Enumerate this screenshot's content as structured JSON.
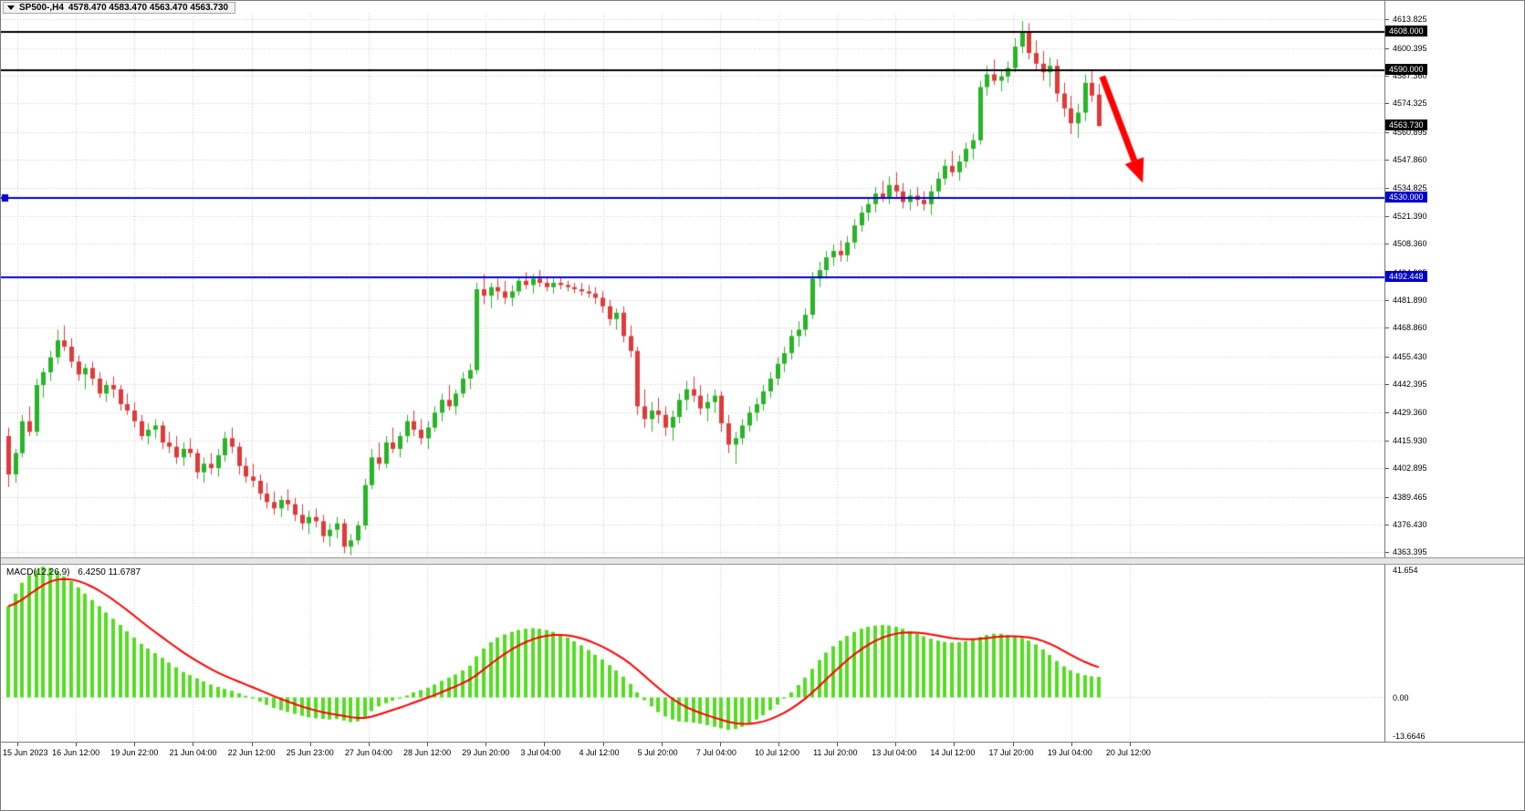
{
  "window": {
    "title": {
      "symbol": "SP500-,H4",
      "ohlc": "4578.470 4583.470 4563.470 4563.730"
    }
  },
  "colors": {
    "background": "#ffffff",
    "grid": "#c9c9c9",
    "up_candle": "#28b428",
    "down_candle": "#df3a3a",
    "hline_black": "#000000",
    "hline_blue": "#0000d0",
    "tag_black": "#000000",
    "tag_blue": "#0000c8",
    "macd_histogram": "#55dd22",
    "macd_signal": "#ff0000",
    "arrow": "#ff0000"
  },
  "chart_data": {
    "type": "candlestick",
    "symbol": "SP500-",
    "timeframe": "H4",
    "x_labels": [
      "15 Jun 2023",
      "16 Jun 12:00",
      "19 Jun 22:00",
      "21 Jun 04:00",
      "22 Jun 12:00",
      "25 Jun 23:00",
      "27 Jun 04:00",
      "28 Jun 12:00",
      "29 Jun 20:00",
      "3 Jul 04:00",
      "4 Jul 12:00",
      "5 Jul 20:00",
      "7 Jul 04:00",
      "10 Jul 12:00",
      "11 Jul 20:00",
      "13 Jul 04:00",
      "14 Jul 12:00",
      "17 Jul 20:00",
      "19 Jul 04:00",
      "20 Jul 12:00"
    ],
    "price_axis": {
      "min": 4361.0,
      "max": 4616.5,
      "labels": [
        "4613.825",
        "4600.395",
        "4587.360",
        "4574.325",
        "4560.895",
        "4547.860",
        "4534.825",
        "4521.390",
        "4508.360",
        "4494.925",
        "4481.890",
        "4468.860",
        "4455.430",
        "4442.395",
        "4429.360",
        "4415.930",
        "4402.895",
        "4389.465",
        "4376.430",
        "4363.395"
      ]
    },
    "hlines": [
      {
        "price": 4608.0,
        "label": "4608.000",
        "color": "black"
      },
      {
        "price": 4590.0,
        "label": "4590.000",
        "color": "black"
      },
      {
        "price": 4530.0,
        "label": "4530.000",
        "color": "blue",
        "handle": true
      },
      {
        "price": 4492.448,
        "label": "4492.448",
        "color": "blue"
      }
    ],
    "current_price": {
      "label": "4563.730",
      "price": 4563.73
    },
    "annotation_arrow": {
      "type": "arrow-down-right",
      "from": {
        "bar": 156.5,
        "price": 4587
      },
      "to": {
        "bar": 162.3,
        "price": 4537
      }
    },
    "candles_ohlc": [
      [
        4418,
        4422,
        4394,
        4400
      ],
      [
        4400,
        4412,
        4396,
        4410
      ],
      [
        4410,
        4428,
        4408,
        4425
      ],
      [
        4425,
        4432,
        4418,
        4420
      ],
      [
        4420,
        4445,
        4418,
        4442
      ],
      [
        4442,
        4450,
        4436,
        4448
      ],
      [
        4448,
        4458,
        4444,
        4455
      ],
      [
        4455,
        4468,
        4452,
        4463
      ],
      [
        4463,
        4470,
        4458,
        4460
      ],
      [
        4460,
        4464,
        4450,
        4453
      ],
      [
        4453,
        4456,
        4444,
        4447
      ],
      [
        4447,
        4452,
        4440,
        4450
      ],
      [
        4450,
        4453,
        4442,
        4445
      ],
      [
        4445,
        4448,
        4436,
        4438
      ],
      [
        4438,
        4444,
        4434,
        4442
      ],
      [
        4442,
        4446,
        4436,
        4440
      ],
      [
        4440,
        4442,
        4430,
        4433
      ],
      [
        4433,
        4438,
        4428,
        4430
      ],
      [
        4430,
        4434,
        4422,
        4425
      ],
      [
        4425,
        4428,
        4416,
        4418
      ],
      [
        4418,
        4424,
        4414,
        4421
      ],
      [
        4421,
        4426,
        4417,
        4423
      ],
      [
        4423,
        4425,
        4412,
        4415
      ],
      [
        4415,
        4420,
        4410,
        4413
      ],
      [
        4413,
        4418,
        4405,
        4408
      ],
      [
        4408,
        4415,
        4404,
        4412
      ],
      [
        4412,
        4417,
        4408,
        4410
      ],
      [
        4410,
        4412,
        4398,
        4401
      ],
      [
        4401,
        4408,
        4396,
        4405
      ],
      [
        4405,
        4410,
        4400,
        4403
      ],
      [
        4403,
        4412,
        4399,
        4409
      ],
      [
        4409,
        4420,
        4406,
        4417
      ],
      [
        4417,
        4422,
        4410,
        4413
      ],
      [
        4413,
        4415,
        4400,
        4404
      ],
      [
        4404,
        4408,
        4396,
        4399
      ],
      [
        4399,
        4405,
        4394,
        4397
      ],
      [
        4397,
        4400,
        4388,
        4391
      ],
      [
        4391,
        4396,
        4384,
        4387
      ],
      [
        4387,
        4392,
        4381,
        4384
      ],
      [
        4384,
        4390,
        4380,
        4388
      ],
      [
        4388,
        4393,
        4383,
        4386
      ],
      [
        4386,
        4389,
        4378,
        4381
      ],
      [
        4381,
        4386,
        4374,
        4377
      ],
      [
        4377,
        4383,
        4372,
        4380
      ],
      [
        4380,
        4384,
        4375,
        4378
      ],
      [
        4378,
        4381,
        4368,
        4371
      ],
      [
        4371,
        4377,
        4366,
        4374
      ],
      [
        4374,
        4380,
        4370,
        4377
      ],
      [
        4377,
        4379,
        4363,
        4366
      ],
      [
        4366,
        4372,
        4362,
        4369
      ],
      [
        4369,
        4378,
        4367,
        4376
      ],
      [
        4376,
        4398,
        4374,
        4395
      ],
      [
        4395,
        4412,
        4393,
        4408
      ],
      [
        4408,
        4415,
        4402,
        4405
      ],
      [
        4405,
        4418,
        4403,
        4415
      ],
      [
        4415,
        4422,
        4410,
        4412
      ],
      [
        4412,
        4420,
        4408,
        4418
      ],
      [
        4418,
        4428,
        4415,
        4425
      ],
      [
        4425,
        4430,
        4418,
        4421
      ],
      [
        4421,
        4426,
        4414,
        4417
      ],
      [
        4417,
        4425,
        4412,
        4422
      ],
      [
        4422,
        4432,
        4420,
        4429
      ],
      [
        4429,
        4438,
        4425,
        4435
      ],
      [
        4435,
        4442,
        4430,
        4432
      ],
      [
        4432,
        4440,
        4428,
        4438
      ],
      [
        4438,
        4448,
        4436,
        4445
      ],
      [
        4445,
        4452,
        4440,
        4449
      ],
      [
        4449,
        4490,
        4447,
        4487
      ],
      [
        4487,
        4494,
        4480,
        4484
      ],
      [
        4484,
        4490,
        4478,
        4488
      ],
      [
        4488,
        4492,
        4482,
        4486
      ],
      [
        4486,
        4491,
        4480,
        4483
      ],
      [
        4483,
        4489,
        4479,
        4486
      ],
      [
        4486,
        4493,
        4484,
        4491
      ],
      [
        4491,
        4495,
        4487,
        4489
      ],
      [
        4489,
        4494,
        4485,
        4492
      ],
      [
        4492,
        4496,
        4488,
        4490
      ],
      [
        4490,
        4493,
        4486,
        4488
      ],
      [
        4488,
        4492,
        4485,
        4490
      ],
      [
        4490,
        4493,
        4487,
        4489
      ],
      [
        4489,
        4491,
        4486,
        4488
      ],
      [
        4488,
        4490,
        4485,
        4487
      ],
      [
        4487,
        4490,
        4484,
        4486
      ],
      [
        4486,
        4489,
        4483,
        4485
      ],
      [
        4485,
        4488,
        4480,
        4483
      ],
      [
        4483,
        4486,
        4476,
        4479
      ],
      [
        4479,
        4482,
        4470,
        4473
      ],
      [
        4473,
        4478,
        4468,
        4476
      ],
      [
        4476,
        4479,
        4462,
        4465
      ],
      [
        4465,
        4470,
        4455,
        4458
      ],
      [
        4458,
        4460,
        4428,
        4432
      ],
      [
        4432,
        4440,
        4422,
        4426
      ],
      [
        4426,
        4434,
        4420,
        4430
      ],
      [
        4430,
        4436,
        4424,
        4428
      ],
      [
        4428,
        4432,
        4418,
        4422
      ],
      [
        4422,
        4430,
        4416,
        4427
      ],
      [
        4427,
        4438,
        4424,
        4435
      ],
      [
        4435,
        4444,
        4430,
        4440
      ],
      [
        4440,
        4446,
        4434,
        4437
      ],
      [
        4437,
        4442,
        4428,
        4431
      ],
      [
        4431,
        4438,
        4425,
        4434
      ],
      [
        4434,
        4440,
        4429,
        4437
      ],
      [
        4437,
        4439,
        4420,
        4424
      ],
      [
        4424,
        4428,
        4410,
        4414
      ],
      [
        4414,
        4420,
        4405,
        4417
      ],
      [
        4417,
        4426,
        4414,
        4423
      ],
      [
        4423,
        4432,
        4420,
        4429
      ],
      [
        4429,
        4436,
        4425,
        4433
      ],
      [
        4433,
        4442,
        4430,
        4439
      ],
      [
        4439,
        4448,
        4436,
        4445
      ],
      [
        4445,
        4455,
        4442,
        4452
      ],
      [
        4452,
        4460,
        4448,
        4457
      ],
      [
        4457,
        4468,
        4454,
        4465
      ],
      [
        4465,
        4472,
        4460,
        4468
      ],
      [
        4468,
        4478,
        4465,
        4475
      ],
      [
        4475,
        4495,
        4473,
        4492
      ],
      [
        4492,
        4500,
        4488,
        4496
      ],
      [
        4496,
        4505,
        4492,
        4502
      ],
      [
        4502,
        4508,
        4498,
        4505
      ],
      [
        4505,
        4510,
        4500,
        4503
      ],
      [
        4503,
        4512,
        4500,
        4509
      ],
      [
        4509,
        4520,
        4506,
        4517
      ],
      [
        4517,
        4526,
        4514,
        4523
      ],
      [
        4523,
        4530,
        4519,
        4527
      ],
      [
        4527,
        4535,
        4523,
        4532
      ],
      [
        4532,
        4538,
        4528,
        4530
      ],
      [
        4530,
        4540,
        4527,
        4536
      ],
      [
        4536,
        4542,
        4530,
        4533
      ],
      [
        4533,
        4537,
        4525,
        4528
      ],
      [
        4528,
        4534,
        4524,
        4531
      ],
      [
        4531,
        4535,
        4526,
        4529
      ],
      [
        4529,
        4533,
        4524,
        4527
      ],
      [
        4527,
        4536,
        4522,
        4533
      ],
      [
        4533,
        4542,
        4530,
        4539
      ],
      [
        4539,
        4548,
        4536,
        4545
      ],
      [
        4545,
        4552,
        4540,
        4542
      ],
      [
        4542,
        4550,
        4538,
        4547
      ],
      [
        4547,
        4556,
        4544,
        4553
      ],
      [
        4553,
        4560,
        4548,
        4557
      ],
      [
        4557,
        4585,
        4555,
        4582
      ],
      [
        4582,
        4592,
        4578,
        4588
      ],
      [
        4588,
        4595,
        4583,
        4585
      ],
      [
        4585,
        4590,
        4580,
        4587
      ],
      [
        4587,
        4594,
        4584,
        4591
      ],
      [
        4591,
        4605,
        4589,
        4601
      ],
      [
        4601,
        4613,
        4598,
        4608
      ],
      [
        4608,
        4612,
        4595,
        4598
      ],
      [
        4598,
        4604,
        4590,
        4593
      ],
      [
        4593,
        4599,
        4585,
        4589
      ],
      [
        4589,
        4596,
        4582,
        4592
      ],
      [
        4592,
        4595,
        4575,
        4579
      ],
      [
        4579,
        4584,
        4568,
        4572
      ],
      [
        4572,
        4578,
        4560,
        4565
      ],
      [
        4565,
        4574,
        4558,
        4570
      ],
      [
        4570,
        4588,
        4566,
        4584
      ],
      [
        4584,
        4590,
        4575,
        4578
      ],
      [
        4578.47,
        4583.47,
        4563.47,
        4563.73
      ]
    ],
    "macd": {
      "label_name": "MACD(12,26,9)",
      "label_values": "6.4250 11.6787",
      "signal_period": 9,
      "axis_max": 41.654,
      "axis_min": -13.6646,
      "axis_labels": [
        "41.654",
        "0.00",
        "-13.6646"
      ],
      "histogram": [
        29,
        33,
        36.5,
        39,
        40.5,
        41.65,
        41.2,
        40,
        38.5,
        37,
        35,
        33,
        31,
        29,
        27,
        25,
        23,
        21,
        19,
        17,
        15.5,
        14,
        12.5,
        11,
        9.5,
        8,
        7,
        6,
        5,
        4,
        3.2,
        2.6,
        2,
        1.2,
        0.4,
        -0.5,
        -1.5,
        -2.5,
        -3.5,
        -4.2,
        -4.8,
        -5.4,
        -6,
        -6.5,
        -6.8,
        -7,
        -7.2,
        -7,
        -7.5,
        -8,
        -7.8,
        -6.5,
        -4.5,
        -3,
        -2,
        -1.2,
        -0.5,
        0.5,
        1.5,
        2.2,
        3,
        4,
        5.2,
        6.2,
        7.2,
        8.5,
        10,
        13,
        15.5,
        17.5,
        19,
        20,
        20.8,
        21.4,
        21.8,
        22,
        21.8,
        21.4,
        20.8,
        20,
        19,
        17.8,
        16.5,
        15,
        13.5,
        12,
        10.2,
        8.5,
        6.5,
        4.2,
        1.5,
        -1,
        -3,
        -4.8,
        -6.2,
        -7.2,
        -7.8,
        -8,
        -8.2,
        -8.5,
        -9,
        -9.5,
        -10,
        -10.5,
        -10.2,
        -9.5,
        -8.5,
        -7.2,
        -5.8,
        -4.2,
        -2.4,
        -0.5,
        1.5,
        3.8,
        6.2,
        9,
        11.8,
        14.2,
        16.2,
        18,
        19.5,
        20.8,
        21.8,
        22.4,
        22.8,
        23,
        22.8,
        22.4,
        21.8,
        21,
        20.2,
        19.4,
        18.6,
        18,
        17.6,
        17.4,
        17.5,
        17.8,
        18.4,
        19.2,
        19.8,
        20.2,
        20.2,
        19.8,
        19.2,
        18.8,
        18,
        16.8,
        15.2,
        13.4,
        11.5,
        9.8,
        8.5,
        7.6,
        7,
        6.6,
        6.425
      ]
    }
  }
}
